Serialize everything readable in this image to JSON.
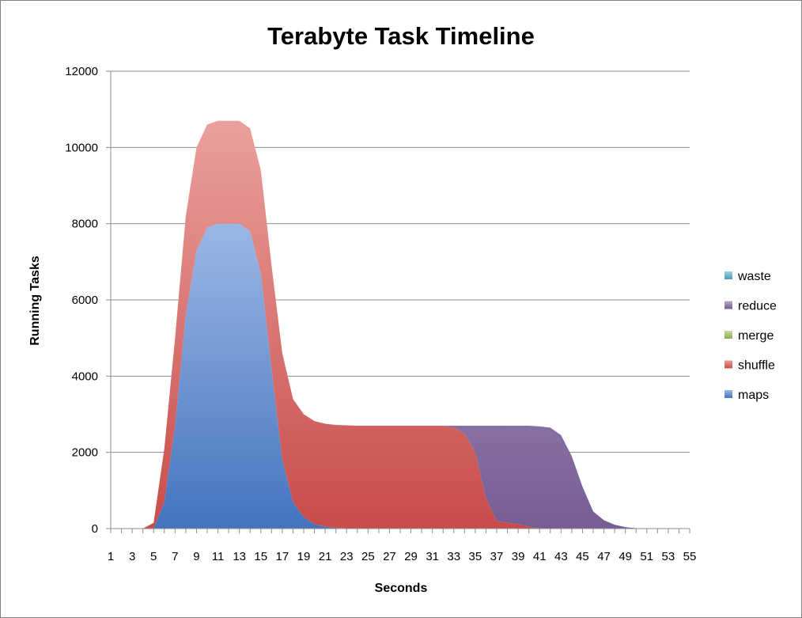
{
  "chart_data": {
    "type": "area",
    "title": "Terabyte Task Timeline",
    "xlabel": "Seconds",
    "ylabel": "Running Tasks",
    "x": [
      1,
      2,
      3,
      4,
      5,
      6,
      7,
      8,
      9,
      10,
      11,
      12,
      13,
      14,
      15,
      16,
      17,
      18,
      19,
      20,
      21,
      22,
      23,
      24,
      25,
      26,
      27,
      28,
      29,
      30,
      31,
      32,
      33,
      34,
      35,
      36,
      37,
      38,
      39,
      40,
      41,
      42,
      43,
      44,
      45,
      46,
      47,
      48,
      49,
      50,
      51,
      52,
      53,
      54,
      55
    ],
    "x_tick_labels": [
      "1",
      "3",
      "5",
      "7",
      "9",
      "11",
      "13",
      "15",
      "17",
      "19",
      "21",
      "23",
      "25",
      "27",
      "29",
      "31",
      "33",
      "35",
      "37",
      "39",
      "41",
      "43",
      "45",
      "47",
      "49",
      "51",
      "53",
      "55"
    ],
    "ylim": [
      0,
      12000
    ],
    "y_ticks": [
      0,
      2000,
      4000,
      6000,
      8000,
      10000,
      12000
    ],
    "grid": true,
    "legend_position": "right",
    "stacked": true,
    "series": [
      {
        "name": "maps",
        "color": "#4a7ed0",
        "values": [
          0,
          0,
          0,
          0,
          0,
          700,
          2700,
          5600,
          7300,
          7900,
          8000,
          8000,
          8000,
          7800,
          6700,
          4200,
          1800,
          700,
          300,
          120,
          50,
          20,
          10,
          0,
          0,
          0,
          0,
          0,
          0,
          0,
          0,
          0,
          0,
          0,
          0,
          0,
          0,
          0,
          0,
          0,
          0,
          0,
          0,
          0,
          0,
          0,
          0,
          0,
          0,
          0,
          0,
          0,
          0,
          0,
          0
        ]
      },
      {
        "name": "shuffle",
        "color": "#d9534f",
        "values": [
          0,
          0,
          0,
          0,
          150,
          1400,
          2300,
          2600,
          2700,
          2700,
          2700,
          2700,
          2700,
          2700,
          2700,
          2700,
          2800,
          2700,
          2700,
          2700,
          2700,
          2700,
          2700,
          2700,
          2700,
          2700,
          2700,
          2700,
          2700,
          2700,
          2700,
          2700,
          2650,
          2500,
          2000,
          800,
          200,
          150,
          120,
          50,
          0,
          0,
          0,
          0,
          0,
          0,
          0,
          0,
          0,
          0,
          0,
          0,
          0,
          0,
          0
        ]
      },
      {
        "name": "merge",
        "color": "#9bbb59",
        "values": [
          0,
          0,
          0,
          0,
          0,
          0,
          0,
          0,
          0,
          0,
          0,
          0,
          0,
          0,
          0,
          0,
          0,
          0,
          0,
          0,
          0,
          0,
          0,
          0,
          0,
          0,
          0,
          0,
          0,
          0,
          0,
          0,
          0,
          0,
          0,
          0,
          0,
          0,
          0,
          0,
          0,
          0,
          0,
          0,
          0,
          0,
          0,
          0,
          0,
          0,
          0,
          0,
          0,
          0,
          0
        ]
      },
      {
        "name": "reduce",
        "color": "#8064a2",
        "values": [
          0,
          0,
          0,
          0,
          0,
          0,
          0,
          0,
          0,
          0,
          0,
          0,
          0,
          0,
          0,
          0,
          0,
          0,
          0,
          0,
          0,
          0,
          0,
          0,
          0,
          0,
          0,
          0,
          0,
          0,
          0,
          0,
          50,
          200,
          700,
          1900,
          2500,
          2550,
          2580,
          2650,
          2680,
          2650,
          2450,
          1900,
          1100,
          450,
          220,
          100,
          40,
          10,
          0,
          0,
          0,
          0,
          0
        ]
      },
      {
        "name": "waste",
        "color": "#4bacc6",
        "values": [
          0,
          0,
          0,
          0,
          0,
          0,
          0,
          0,
          0,
          0,
          0,
          0,
          0,
          0,
          0,
          0,
          0,
          0,
          0,
          0,
          0,
          0,
          0,
          0,
          0,
          0,
          0,
          0,
          0,
          0,
          0,
          0,
          0,
          0,
          0,
          0,
          0,
          0,
          0,
          0,
          0,
          0,
          0,
          0,
          0,
          0,
          0,
          0,
          0,
          0,
          0,
          0,
          0,
          0,
          0
        ]
      }
    ],
    "legend_order": [
      "waste",
      "reduce",
      "merge",
      "shuffle",
      "maps"
    ]
  }
}
